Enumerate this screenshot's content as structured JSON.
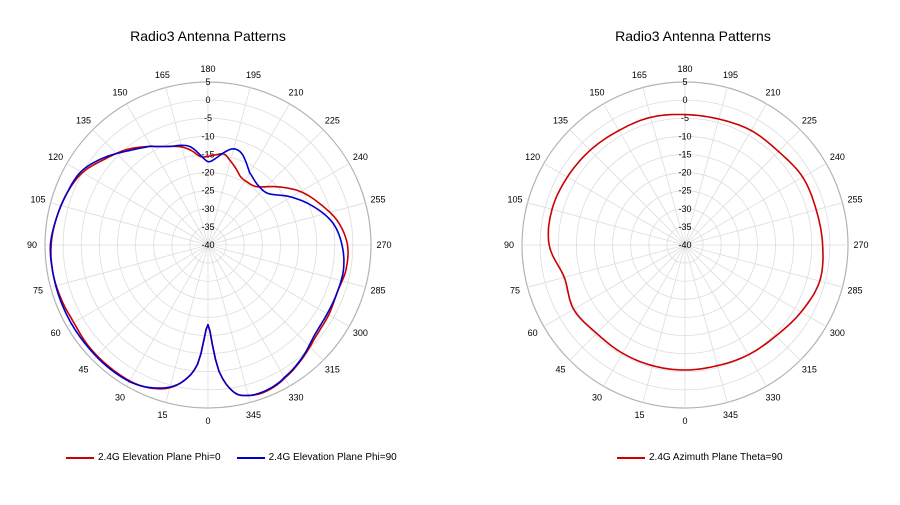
{
  "colors": {
    "phi0": "#cc0000",
    "phi90": "#0000cc",
    "azimuth": "#cc0000",
    "grid": "#dddddd",
    "outer": "#b3b3b3"
  },
  "chart_data": [
    {
      "type": "polar-line",
      "title": "Radio3 Antenna Patterns",
      "angle_ticks": [
        180,
        195,
        210,
        225,
        240,
        255,
        270,
        285,
        300,
        315,
        330,
        345,
        0,
        15,
        30,
        45,
        60,
        75,
        90,
        105,
        120,
        135,
        150,
        165
      ],
      "angle_tick_labels": [
        "180",
        "195",
        "210",
        "225",
        "240",
        "255",
        "270",
        "285",
        "300",
        "315",
        "330",
        "345",
        "0",
        "15",
        "30",
        "45",
        "60",
        "75",
        "90",
        "105",
        "120",
        "135",
        "150",
        "165"
      ],
      "radial_ticks": [
        5,
        0,
        -5,
        -10,
        -15,
        -20,
        -25,
        -30,
        -35,
        -40
      ],
      "radial_tick_labels": [
        "5",
        "0",
        "-5",
        "-10",
        "-15",
        "-20",
        "-25",
        "-30",
        "-35",
        "-40"
      ],
      "rlim": [
        -40,
        5
      ],
      "grid": true,
      "legend_position": "bottom",
      "series": [
        {
          "name": "2.4G Elevation Plane Phi=0",
          "color": "#cc0000",
          "angles": [
            0,
            5,
            10,
            15,
            20,
            25,
            30,
            40,
            50,
            60,
            70,
            80,
            90,
            100,
            110,
            120,
            130,
            140,
            150,
            155,
            160,
            165,
            170,
            175,
            180,
            185,
            190,
            195,
            200,
            205,
            210,
            220,
            230,
            240,
            250,
            260,
            270,
            280,
            290,
            300,
            310,
            320,
            330,
            335,
            340,
            345,
            350,
            355,
            360
          ],
          "values": [
            -18,
            -7,
            -2,
            0.8,
            2.2,
            3,
            3.3,
            3.3,
            3.2,
            2.8,
            3.2,
            3.5,
            3.3,
            2.5,
            1.5,
            0,
            -3,
            -5.5,
            -8.5,
            -10,
            -11,
            -12,
            -13.5,
            -15.5,
            -15.5,
            -15,
            -14.5,
            -16,
            -17.5,
            -19,
            -19.5,
            -19,
            -15,
            -10.5,
            -7,
            -3.5,
            -1.5,
            -1.3,
            -2,
            -1.5,
            -1,
            0.7,
            2.4,
            3.2,
            3.5,
            3,
            1.3,
            -5,
            -18
          ]
        },
        {
          "name": "2.4G Elevation Plane Phi=90",
          "color": "#0000cc",
          "angles": [
            0,
            5,
            10,
            15,
            20,
            25,
            30,
            40,
            50,
            60,
            70,
            80,
            90,
            100,
            110,
            120,
            130,
            140,
            150,
            155,
            160,
            165,
            170,
            175,
            180,
            185,
            190,
            195,
            200,
            205,
            210,
            220,
            230,
            240,
            250,
            260,
            270,
            280,
            290,
            300,
            310,
            320,
            330,
            335,
            340,
            345,
            350,
            355,
            360
          ],
          "values": [
            -18,
            -7,
            -2,
            0.6,
            2,
            3,
            3.5,
            3.6,
            3.5,
            3.5,
            3.5,
            3.5,
            3.5,
            2.5,
            1.5,
            0.5,
            -2.5,
            -6,
            -8.5,
            -10,
            -11,
            -11.5,
            -12.5,
            -15,
            -17,
            -16,
            -14,
            -12.5,
            -13,
            -15,
            -17,
            -18.5,
            -18,
            -13.5,
            -9,
            -5,
            -3,
            -2,
            -2,
            -2,
            -1.5,
            0.5,
            2.2,
            3,
            3.3,
            3,
            1.3,
            -5,
            -18
          ]
        },
        {
          "name": "2.4G Azimuth Plane Theta=90",
          "color": "#cc0000",
          "angles": [
            0,
            15,
            30,
            45,
            60,
            75,
            90,
            105,
            120,
            135,
            150,
            165,
            180,
            195,
            210,
            225,
            240,
            255,
            270,
            285,
            300,
            315,
            330,
            345,
            360
          ],
          "values": [
            -5.5,
            -5.5,
            -5.5,
            -5.5,
            -4.5,
            -5.5,
            -2.5,
            -2,
            -2.5,
            -3,
            -3.5,
            -3.5,
            -4,
            -4,
            -3.5,
            -3.5,
            -2.5,
            -2.5,
            -2,
            -1.5,
            -3,
            -4.5,
            -5,
            -5.5,
            -5.5
          ]
        }
      ]
    }
  ],
  "charts": [
    {
      "title": "Radio3 Antenna Patterns",
      "legend": [
        {
          "label": "2.4G Elevation Plane Phi=0",
          "color": "#cc0000"
        },
        {
          "label": "2.4G Elevation Plane Phi=90",
          "color": "#0000cc"
        }
      ]
    },
    {
      "title": "Radio3 Antenna Patterns",
      "legend": [
        {
          "label": "2.4G Azimuth Plane Theta=90",
          "color": "#cc0000"
        }
      ]
    }
  ]
}
